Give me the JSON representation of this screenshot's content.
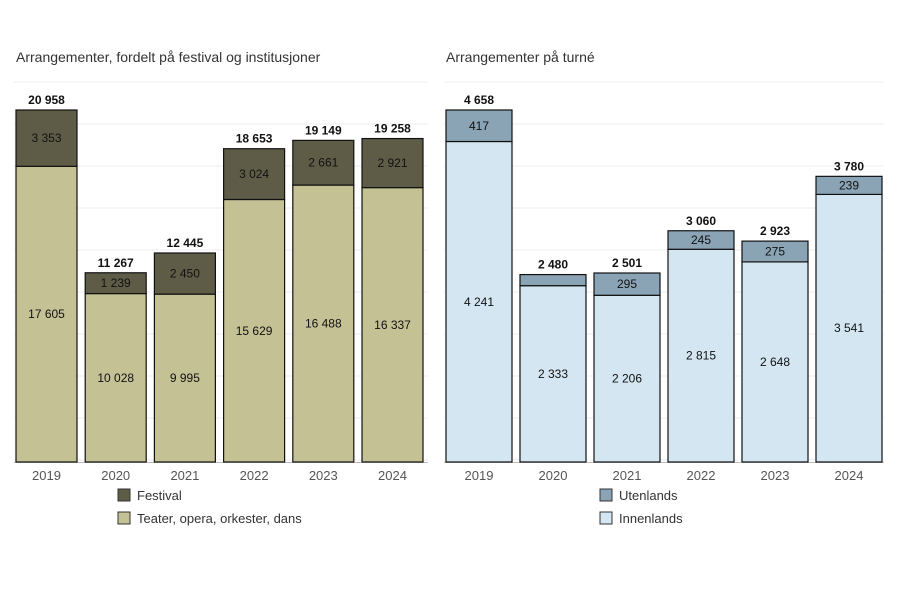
{
  "chart_data": [
    {
      "type": "bar",
      "stacked": true,
      "title": "Arrangementer, fordelt på festival og institusjoner",
      "categories": [
        "2019",
        "2020",
        "2021",
        "2022",
        "2023",
        "2024"
      ],
      "series": [
        {
          "name": "Teater, opera, orkester, dans",
          "values": [
            17605,
            10028,
            9995,
            15629,
            16488,
            16337
          ],
          "labels": [
            "17 605",
            "10 028",
            "9 995",
            "15 629",
            "16 488",
            "16 337"
          ],
          "color": "#c4c195"
        },
        {
          "name": "Festival",
          "values": [
            3353,
            1239,
            2450,
            3024,
            2661,
            2921
          ],
          "labels": [
            "3 353",
            "1 239",
            "2 450",
            "3 024",
            "2 661",
            "2 921"
          ],
          "color": "#5e5c47"
        }
      ],
      "totals": [
        20958,
        11267,
        12445,
        18653,
        19149,
        19258
      ],
      "total_labels": [
        "20 958",
        "11 267",
        "12 445",
        "18 653",
        "19 149",
        "19 258"
      ],
      "legend": [
        "Festival",
        "Teater, opera, orkester, dans"
      ],
      "ylim": [
        0,
        21000
      ],
      "grid": true
    },
    {
      "type": "bar",
      "stacked": true,
      "title": "Arrangementer på turné",
      "categories": [
        "2019",
        "2020",
        "2021",
        "2022",
        "2023",
        "2024"
      ],
      "series": [
        {
          "name": "Innenlands",
          "values": [
            4241,
            2333,
            2206,
            2815,
            2648,
            3541
          ],
          "labels": [
            "4 241",
            "2 333",
            "2 206",
            "2 815",
            "2 648",
            "3 541"
          ],
          "color": "#d4e6f2"
        },
        {
          "name": "Utenlands",
          "values": [
            417,
            147,
            295,
            245,
            275,
            239
          ],
          "labels": [
            "417",
            "",
            "295",
            "245",
            "275",
            "239"
          ],
          "color": "#8aa3b5"
        }
      ],
      "totals": [
        4658,
        2480,
        2501,
        3060,
        2923,
        3780
      ],
      "total_labels": [
        "4 658",
        "2 480",
        "2 501",
        "3 060",
        "2 923",
        "3 780"
      ],
      "legend": [
        "Utenlands",
        "Innenlands"
      ],
      "ylim": [
        0,
        4700
      ],
      "grid": true
    }
  ]
}
